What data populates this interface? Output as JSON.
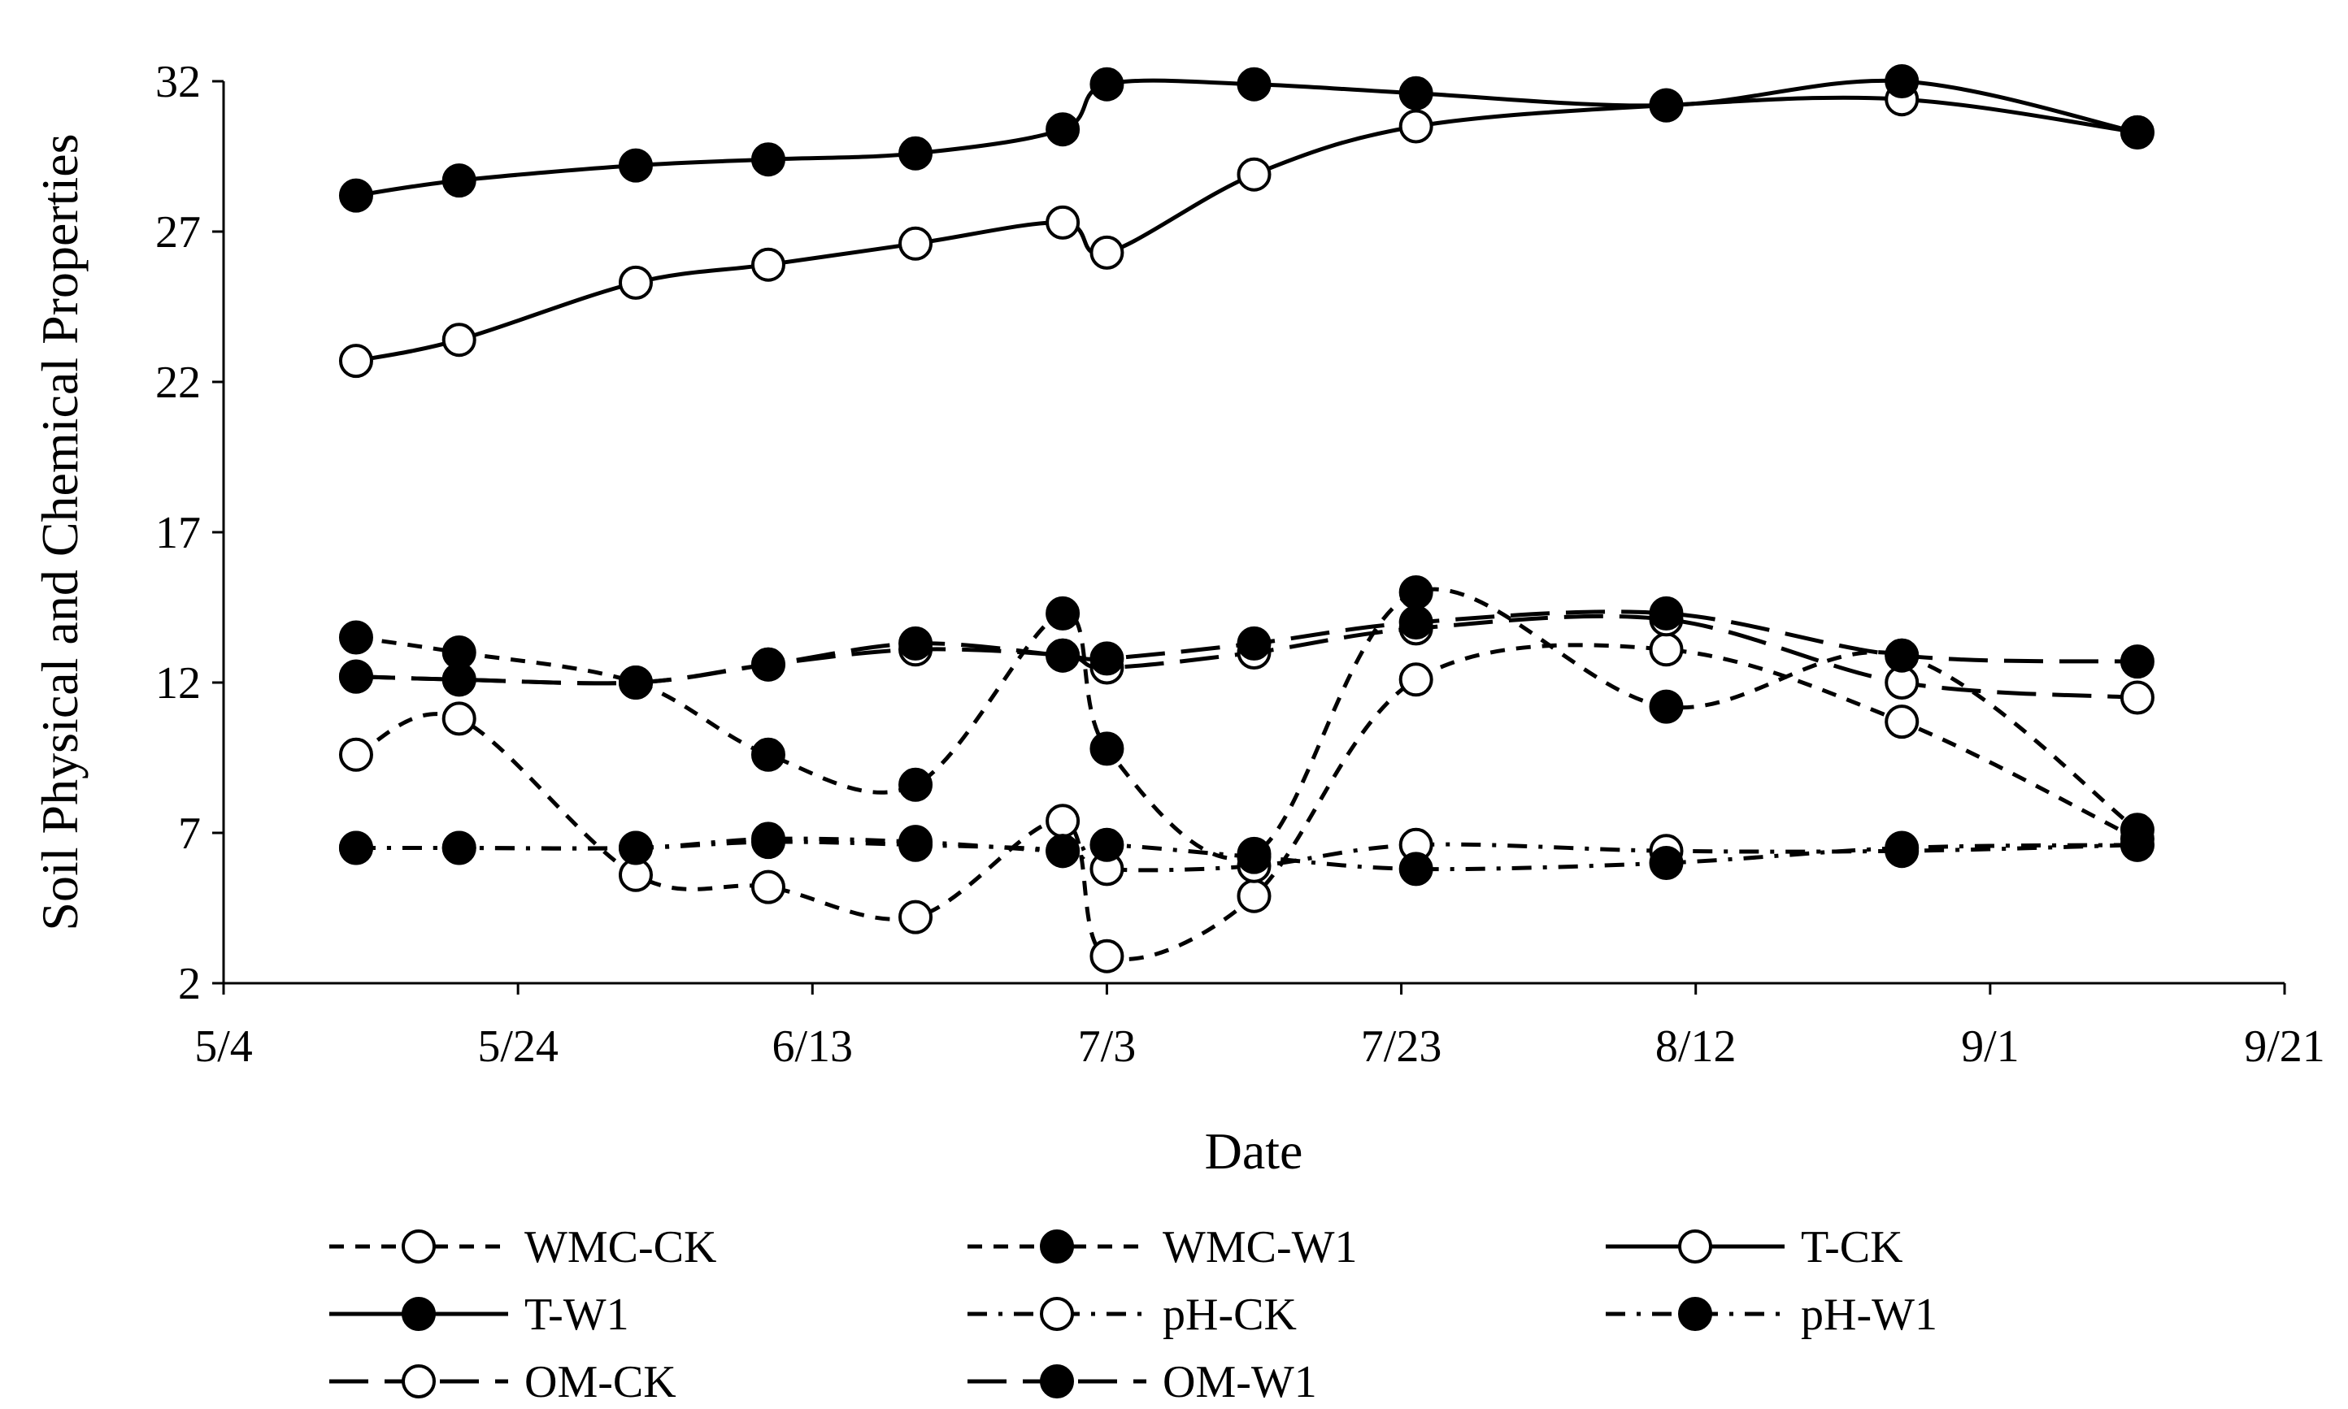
{
  "chart_data": {
    "type": "line",
    "title": "",
    "xlabel": "Date",
    "ylabel": "Soil Physical and Chemical Properties",
    "xlim": [
      0,
      140
    ],
    "ylim": [
      2,
      32
    ],
    "yticks": [
      2,
      7,
      12,
      17,
      22,
      27,
      32
    ],
    "xticks": [
      {
        "value": 0,
        "label": "5/4"
      },
      {
        "value": 20,
        "label": "5/24"
      },
      {
        "value": 40,
        "label": "6/13"
      },
      {
        "value": 60,
        "label": "7/3"
      },
      {
        "value": 80,
        "label": "7/23"
      },
      {
        "value": 100,
        "label": "8/12"
      },
      {
        "value": 120,
        "label": "9/1"
      },
      {
        "value": 140,
        "label": "9/21"
      }
    ],
    "x_note": "x values are days after 5/4",
    "series": [
      {
        "name": "WMC-CK",
        "marker": "open",
        "dash": "dashed",
        "x": [
          9,
          16,
          28,
          37,
          47,
          57,
          60,
          70,
          81,
          98,
          114,
          130
        ],
        "y": [
          9.6,
          10.8,
          5.6,
          5.2,
          4.2,
          7.4,
          2.9,
          4.9,
          12.1,
          13.1,
          10.7,
          6.8
        ]
      },
      {
        "name": "WMC-W1",
        "marker": "filled",
        "dash": "dashed",
        "x": [
          9,
          16,
          28,
          37,
          47,
          57,
          60,
          70,
          81,
          98,
          114,
          130
        ],
        "y": [
          13.5,
          13.0,
          12.0,
          9.6,
          8.6,
          14.3,
          9.8,
          6.3,
          15.0,
          11.2,
          12.9,
          7.1
        ]
      },
      {
        "name": "T-CK",
        "marker": "open",
        "dash": "solid",
        "x": [
          9,
          16,
          28,
          37,
          47,
          57,
          60,
          70,
          81,
          98,
          114,
          130
        ],
        "y": [
          22.7,
          23.4,
          25.3,
          25.9,
          26.6,
          27.3,
          26.3,
          28.9,
          30.5,
          31.2,
          31.4,
          30.3
        ]
      },
      {
        "name": "T-W1",
        "marker": "filled",
        "dash": "solid",
        "x": [
          9,
          16,
          28,
          37,
          47,
          57,
          60,
          70,
          81,
          98,
          114,
          130
        ],
        "y": [
          28.2,
          28.7,
          29.2,
          29.4,
          29.6,
          30.4,
          31.9,
          31.9,
          31.6,
          31.2,
          32.0,
          30.3
        ]
      },
      {
        "name": "pH-CK",
        "marker": "open",
        "dash": "dashdot",
        "x": [
          9,
          16,
          28,
          37,
          47,
          57,
          60,
          70,
          81,
          98,
          114,
          130
        ],
        "y": [
          6.5,
          6.5,
          6.5,
          6.7,
          6.6,
          6.4,
          5.8,
          5.9,
          6.6,
          6.4,
          6.4,
          6.6
        ]
      },
      {
        "name": "pH-W1",
        "marker": "filled",
        "dash": "dashdot",
        "x": [
          9,
          16,
          28,
          37,
          47,
          57,
          60,
          70,
          81,
          98,
          114,
          130
        ],
        "y": [
          6.5,
          6.5,
          6.5,
          6.8,
          6.7,
          6.4,
          6.6,
          6.2,
          5.8,
          6.0,
          6.5,
          6.6
        ]
      },
      {
        "name": "OM-CK",
        "marker": "open",
        "dash": "longdash",
        "x": [
          9,
          16,
          28,
          37,
          47,
          57,
          60,
          70,
          81,
          98,
          114,
          130
        ],
        "y": [
          12.2,
          12.1,
          12.0,
          12.6,
          13.1,
          12.9,
          12.5,
          13.0,
          13.8,
          14.1,
          12.0,
          11.5
        ]
      },
      {
        "name": "OM-W1",
        "marker": "filled",
        "dash": "longdash",
        "x": [
          9,
          16,
          28,
          37,
          47,
          57,
          60,
          70,
          81,
          98,
          114,
          130
        ],
        "y": [
          12.2,
          12.1,
          12.0,
          12.6,
          13.3,
          12.9,
          12.8,
          13.3,
          14.0,
          14.3,
          12.9,
          12.7
        ]
      }
    ],
    "legend": {
      "position": "bottom",
      "columns": 3
    }
  }
}
